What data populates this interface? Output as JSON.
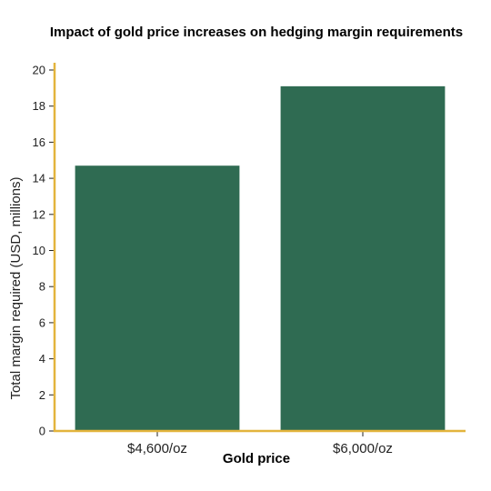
{
  "chart_data": {
    "type": "bar",
    "title": "Impact of gold price increases on hedging margin requirements",
    "xlabel": "Gold price",
    "ylabel": "Total margin required (USD, millions)",
    "categories": [
      "$4,600/oz",
      "$6,000/oz"
    ],
    "values": [
      14.7,
      19.1
    ],
    "ylim": [
      0,
      20
    ],
    "yticks": [
      0,
      2,
      4,
      6,
      8,
      10,
      12,
      14,
      16,
      18,
      20
    ],
    "grid": false,
    "colors": {
      "bar": "#2f6b52",
      "axis": "#e3b43c"
    }
  }
}
